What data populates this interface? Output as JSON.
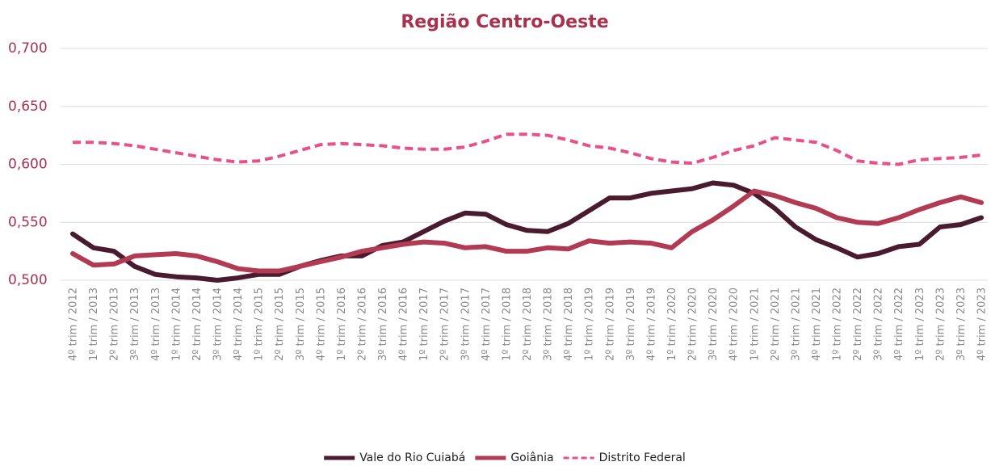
{
  "chart_data": {
    "type": "line",
    "title": "Região Centro-Oeste",
    "categories": [
      "4º trim / 2012",
      "1º trim / 2013",
      "2º trim / 2013",
      "3º trim / 2013",
      "4º trim / 2013",
      "1º trim / 2014",
      "2º trim / 2014",
      "3º trim / 2014",
      "4º trim / 2014",
      "1º trim / 2015",
      "2º trim / 2015",
      "3º trim / 2015",
      "4º trim / 2015",
      "1º trim / 2016",
      "2º trim / 2016",
      "3º trim / 2016",
      "4º trim / 2016",
      "1º trim / 2017",
      "2º trim / 2017",
      "3º trim / 2017",
      "4º trim / 2017",
      "1º trim / 2018",
      "2º trim / 2018",
      "3º trim / 2018",
      "4º trim / 2018",
      "1º trim / 2019",
      "2º trim / 2019",
      "3º trim / 2019",
      "4º trim / 2019",
      "1º trim / 2020",
      "2º trim / 2020",
      "3º trim / 2020",
      "4º trim / 2020",
      "1º trim / 2021",
      "2º trim / 2021",
      "3º trim / 2021",
      "4º trim / 2021",
      "1º trim / 2022",
      "2º trim / 2022",
      "3º trim / 2022",
      "4º trim / 2022",
      "1º trim / 2023",
      "2º trim / 2023",
      "3º trim / 2023",
      "4º trim / 2023"
    ],
    "series": [
      {
        "name": "Vale do Rio Cuiabá",
        "color": "#4a1b2f",
        "dashed": false,
        "values": [
          0.54,
          0.528,
          0.525,
          0.512,
          0.505,
          0.503,
          0.502,
          0.5,
          0.502,
          0.505,
          0.505,
          0.512,
          0.517,
          0.521,
          0.521,
          0.53,
          0.533,
          0.542,
          0.551,
          0.558,
          0.557,
          0.548,
          0.543,
          0.542,
          0.549,
          0.56,
          0.571,
          0.571,
          0.575,
          0.577,
          0.579,
          0.584,
          0.582,
          0.575,
          0.562,
          0.546,
          0.535,
          0.528,
          0.52,
          0.523,
          0.529,
          0.531,
          0.546,
          0.548,
          0.554
        ]
      },
      {
        "name": "Goiânia",
        "color": "#b23a53",
        "dashed": false,
        "values": [
          0.523,
          0.513,
          0.514,
          0.521,
          0.522,
          0.523,
          0.521,
          0.516,
          0.51,
          0.508,
          0.508,
          0.512,
          0.516,
          0.52,
          0.525,
          0.528,
          0.531,
          0.533,
          0.532,
          0.528,
          0.529,
          0.525,
          0.525,
          0.528,
          0.527,
          0.534,
          0.532,
          0.533,
          0.532,
          0.528,
          0.542,
          0.552,
          0.564,
          0.577,
          0.573,
          0.567,
          0.562,
          0.554,
          0.55,
          0.549,
          0.554,
          0.561,
          0.567,
          0.572,
          0.567
        ]
      },
      {
        "name": "Distrito Federal",
        "color": "#e8508a",
        "dashed": true,
        "values": [
          0.619,
          0.619,
          0.618,
          0.616,
          0.613,
          0.61,
          0.607,
          0.604,
          0.602,
          0.603,
          0.607,
          0.612,
          0.617,
          0.618,
          0.617,
          0.616,
          0.614,
          0.613,
          0.613,
          0.615,
          0.62,
          0.626,
          0.626,
          0.625,
          0.621,
          0.616,
          0.614,
          0.61,
          0.605,
          0.602,
          0.601,
          0.606,
          0.612,
          0.616,
          0.623,
          0.621,
          0.619,
          0.612,
          0.603,
          0.601,
          0.6,
          0.604,
          0.605,
          0.606,
          0.608
        ]
      }
    ],
    "ylim": [
      0.5,
      0.7
    ],
    "yticks": [
      {
        "value": 0.5,
        "label": "0,500"
      },
      {
        "value": 0.55,
        "label": "0,550"
      },
      {
        "value": 0.6,
        "label": "0,600"
      },
      {
        "value": 0.65,
        "label": "0,650"
      },
      {
        "value": 0.7,
        "label": "0,700"
      }
    ],
    "grid": true,
    "legend": "bottom"
  }
}
